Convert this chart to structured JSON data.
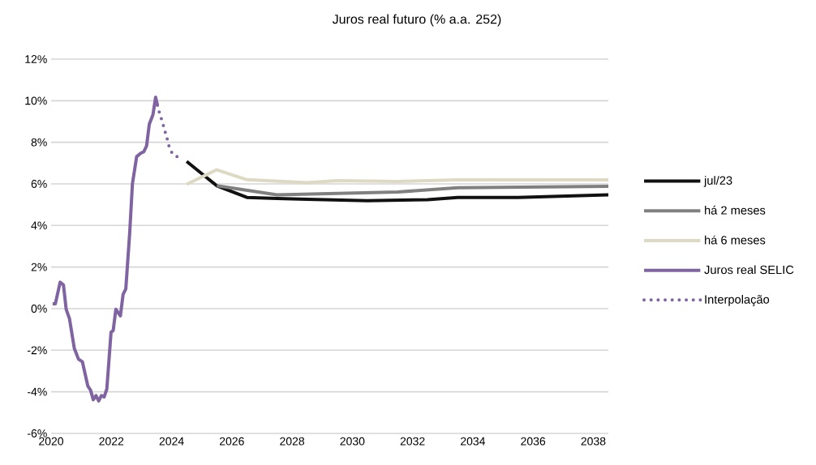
{
  "chart_data": {
    "type": "line",
    "title": "Juros real futuro (% a.a. 252)",
    "xlim": [
      2020,
      2038.5
    ],
    "xticks": [
      2020,
      2022,
      2024,
      2026,
      2028,
      2030,
      2032,
      2034,
      2036,
      2038
    ],
    "ylim": [
      -6,
      12
    ],
    "yticks": [
      {
        "value": -6,
        "label": "-6%"
      },
      {
        "value": -4,
        "label": "-4%"
      },
      {
        "value": -2,
        "label": "-2%"
      },
      {
        "value": 0,
        "label": "0%"
      },
      {
        "value": 2,
        "label": "2%"
      },
      {
        "value": 4,
        "label": "4%"
      },
      {
        "value": 6,
        "label": "6%"
      },
      {
        "value": 8,
        "label": "8%"
      },
      {
        "value": 10,
        "label": "10%"
      },
      {
        "value": 12,
        "label": "12%"
      }
    ],
    "grid": "y",
    "legend": "right",
    "series": [
      {
        "name": "jul/23",
        "color": "#111111",
        "x": [
          2024.5,
          2025.5,
          2026.5,
          2027.5,
          2028.5,
          2030.5,
          2032.5,
          2033.5,
          2035.5,
          2038.5
        ],
        "values": [
          7.08,
          5.91,
          5.35,
          5.3,
          5.26,
          5.19,
          5.24,
          5.35,
          5.35,
          5.47
        ]
      },
      {
        "name": "há 2 meses",
        "color": "#808080",
        "x": [
          2025.5,
          2027.5,
          2031.5,
          2033.5,
          2038.5
        ],
        "values": [
          5.91,
          5.47,
          5.61,
          5.81,
          5.88
        ]
      },
      {
        "name": "há 6 meses",
        "color": "#ddd9c3",
        "x": [
          2024.5,
          2025.5,
          2026.5,
          2028.5,
          2029.5,
          2031.5,
          2033.5,
          2038.5
        ],
        "values": [
          5.98,
          6.68,
          6.2,
          6.06,
          6.16,
          6.12,
          6.19,
          6.19
        ]
      },
      {
        "name": "Juros real SELIC",
        "color": "#8064a2",
        "x": [
          2020.05,
          2020.14,
          2020.3,
          2020.41,
          2020.5,
          2020.61,
          2020.77,
          2020.91,
          2021.04,
          2021.22,
          2021.31,
          2021.4,
          2021.49,
          2021.58,
          2021.67,
          2021.76,
          2021.85,
          2021.99,
          2022.06,
          2022.15,
          2022.3,
          2022.39,
          2022.48,
          2022.61,
          2022.7,
          2022.84,
          2022.97,
          2023.08,
          2023.17,
          2023.26,
          2023.38,
          2023.47,
          2023.53
        ],
        "values": [
          0.23,
          0.23,
          1.27,
          1.14,
          -0.03,
          -0.48,
          -1.91,
          -2.43,
          -2.56,
          -3.73,
          -3.92,
          -4.38,
          -4.18,
          -4.44,
          -4.18,
          -4.25,
          -3.86,
          -1.13,
          -1.06,
          -0.03,
          -0.35,
          0.69,
          0.95,
          3.67,
          6.01,
          7.31,
          7.47,
          7.55,
          7.83,
          8.87,
          9.32,
          10.17,
          9.78
        ]
      },
      {
        "name": "Interpolação",
        "color": "#8064a2",
        "line_style": "dotted",
        "x": [
          2023.53,
          2023.6,
          2023.69,
          2023.77,
          2023.85,
          2023.92,
          2024.03,
          2024.3
        ],
        "values": [
          9.78,
          9.39,
          9.0,
          8.58,
          8.18,
          7.78,
          7.44,
          7.22
        ]
      }
    ]
  }
}
